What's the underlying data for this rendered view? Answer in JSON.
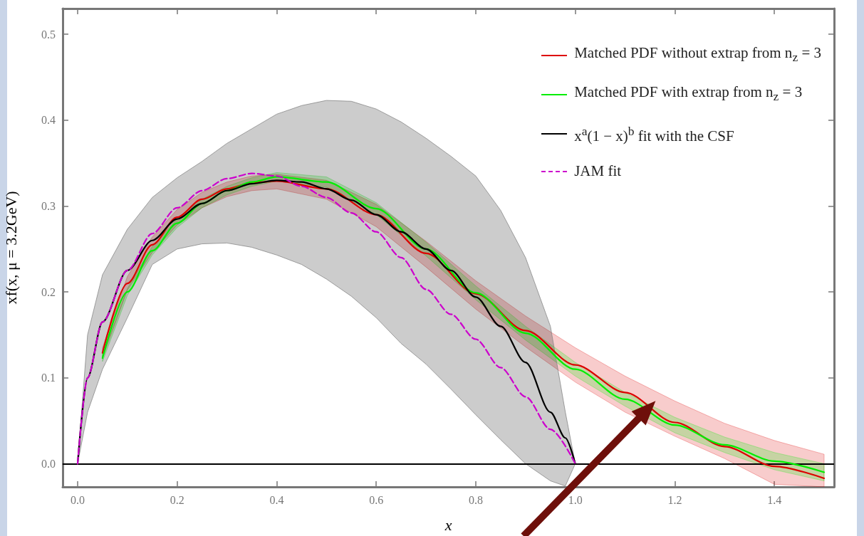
{
  "chart_data": {
    "type": "line",
    "xlabel": "x",
    "ylabel": "xf(x, μ = 3.2GeV)",
    "xlim": [
      -0.03,
      1.52
    ],
    "ylim": [
      -0.027,
      0.53
    ],
    "xticks": [
      {
        "value": 0,
        "label": "0.0"
      },
      0.2,
      0.4,
      0.6,
      0.8,
      {
        "value": 1,
        "label": "1.0"
      },
      1.2,
      1.4
    ],
    "yticks": [
      {
        "value": 0,
        "label": "0.0"
      },
      0.1,
      0.2,
      0.3,
      0.4,
      0.5
    ],
    "legend": "top right",
    "marker": "none",
    "ref_lines": [
      {
        "axis": "y",
        "value": 0,
        "color": "#000000"
      }
    ],
    "series": [
      {
        "name": "Matched PDF without extrap from n$_{z}$ = 3",
        "color": "#dd0000",
        "line_style": "solid",
        "x": [
          0.05,
          0.1,
          0.15,
          0.2,
          0.25,
          0.3,
          0.35,
          0.4,
          0.5,
          0.6,
          0.7,
          0.8,
          0.9,
          1.0,
          1.1,
          1.2,
          1.3,
          1.4,
          1.5
        ],
        "values": [
          0.129,
          0.21,
          0.255,
          0.287,
          0.308,
          0.32,
          0.327,
          0.329,
          0.32,
          0.29,
          0.245,
          0.198,
          0.155,
          0.115,
          0.083,
          0.048,
          0.02,
          -0.003,
          -0.017
        ],
        "upper": [
          0.135,
          0.218,
          0.264,
          0.296,
          0.316,
          0.328,
          0.335,
          0.337,
          0.33,
          0.302,
          0.259,
          0.213,
          0.172,
          0.135,
          0.102,
          0.073,
          0.047,
          0.027,
          0.011
        ],
        "lower": [
          0.123,
          0.202,
          0.246,
          0.278,
          0.298,
          0.311,
          0.318,
          0.32,
          0.308,
          0.276,
          0.229,
          0.18,
          0.136,
          0.095,
          0.06,
          0.032,
          0.006,
          -0.024,
          -0.027
        ]
      },
      {
        "name": "Matched PDF with extrap from n$_{z}$ = 3",
        "color": "#00ee00",
        "line_style": "solid",
        "x": [
          0.05,
          0.1,
          0.15,
          0.2,
          0.25,
          0.3,
          0.35,
          0.4,
          0.5,
          0.6,
          0.7,
          0.8,
          0.9,
          1.0,
          1.1,
          1.2,
          1.3,
          1.4,
          1.5
        ],
        "values": [
          0.123,
          0.2,
          0.248,
          0.28,
          0.303,
          0.318,
          0.328,
          0.334,
          0.328,
          0.297,
          0.25,
          0.199,
          0.152,
          0.11,
          0.075,
          0.045,
          0.022,
          0.003,
          -0.01
        ],
        "upper": [
          0.127,
          0.204,
          0.253,
          0.285,
          0.308,
          0.323,
          0.333,
          0.339,
          0.334,
          0.304,
          0.258,
          0.207,
          0.16,
          0.118,
          0.083,
          0.054,
          0.031,
          0.013,
          0.0
        ],
        "lower": [
          0.119,
          0.196,
          0.243,
          0.275,
          0.298,
          0.313,
          0.323,
          0.329,
          0.322,
          0.29,
          0.242,
          0.191,
          0.144,
          0.102,
          0.067,
          0.036,
          0.013,
          -0.007,
          -0.02
        ]
      },
      {
        "name": "x$^{a}$(1 − x)$^{b}$ fit with the CSF",
        "color": "#000000",
        "line_style": "solid",
        "x": [
          0,
          0.02,
          0.05,
          0.1,
          0.15,
          0.2,
          0.25,
          0.3,
          0.35,
          0.4,
          0.45,
          0.5,
          0.55,
          0.6,
          0.65,
          0.7,
          0.75,
          0.8,
          0.85,
          0.9,
          0.95,
          0.98,
          1.0
        ],
        "values": [
          0,
          0.1,
          0.165,
          0.225,
          0.26,
          0.285,
          0.303,
          0.318,
          0.326,
          0.33,
          0.328,
          0.32,
          0.307,
          0.29,
          0.27,
          0.25,
          0.225,
          0.194,
          0.16,
          0.118,
          0.06,
          0.03,
          0
        ],
        "upper": [
          0,
          0.15,
          0.22,
          0.273,
          0.31,
          0.333,
          0.352,
          0.373,
          0.39,
          0.407,
          0.417,
          0.423,
          0.422,
          0.413,
          0.398,
          0.379,
          0.358,
          0.335,
          0.295,
          0.24,
          0.16,
          0.06,
          0
        ],
        "lower": [
          0,
          0.06,
          0.11,
          0.17,
          0.232,
          0.25,
          0.256,
          0.257,
          0.252,
          0.243,
          0.232,
          0.215,
          0.195,
          0.17,
          0.14,
          0.116,
          0.087,
          0.057,
          0.028,
          0,
          -0.02,
          -0.026,
          0
        ]
      },
      {
        "name": "JAM fit",
        "color": "#cc00cc",
        "line_style": "dashed",
        "x": [
          0,
          0.02,
          0.05,
          0.1,
          0.15,
          0.2,
          0.25,
          0.3,
          0.35,
          0.4,
          0.45,
          0.5,
          0.55,
          0.6,
          0.65,
          0.7,
          0.75,
          0.8,
          0.85,
          0.9,
          0.95,
          1.0
        ],
        "values": [
          0,
          0.1,
          0.165,
          0.225,
          0.268,
          0.298,
          0.318,
          0.332,
          0.338,
          0.335,
          0.323,
          0.31,
          0.292,
          0.27,
          0.24,
          0.203,
          0.174,
          0.145,
          0.112,
          0.078,
          0.04,
          0
        ]
      }
    ]
  }
}
